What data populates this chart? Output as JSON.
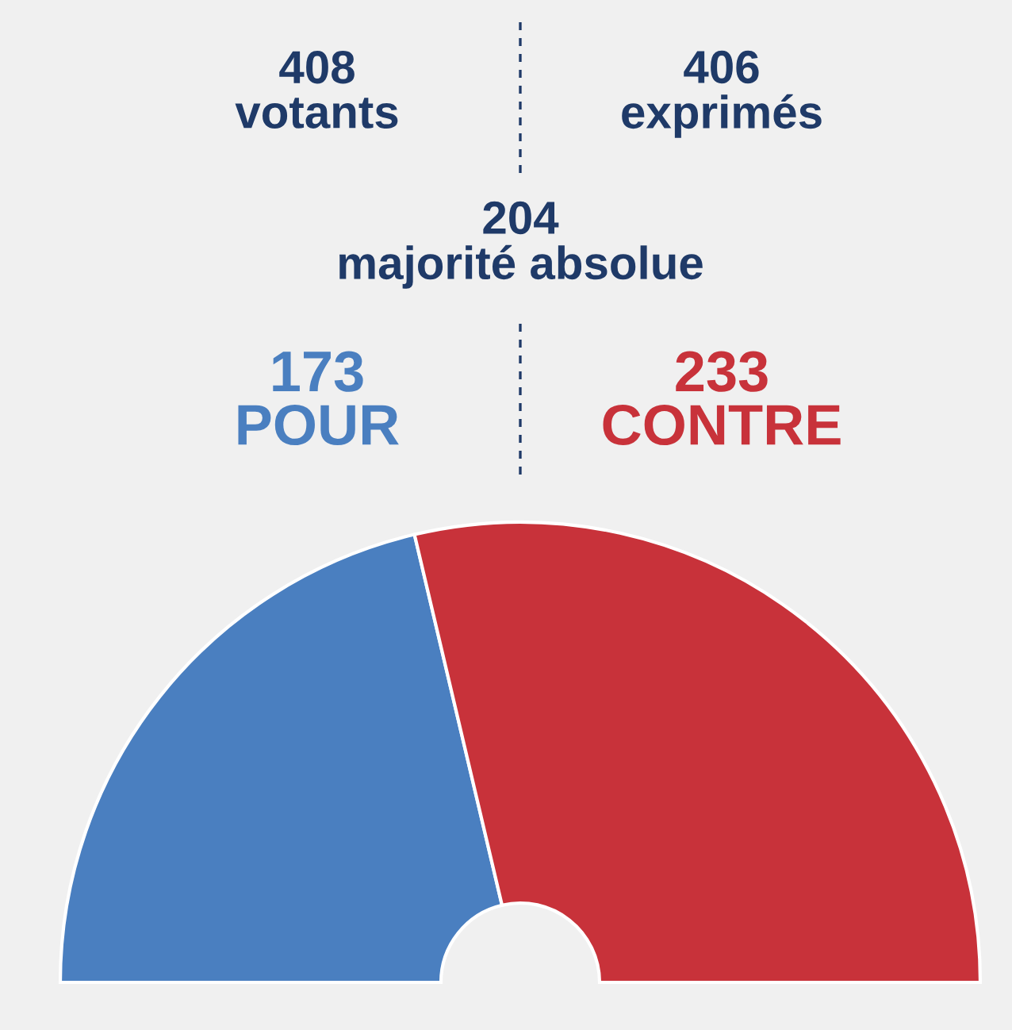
{
  "chart_data": {
    "type": "donut",
    "categories": [
      "POUR",
      "CONTRE"
    ],
    "values": [
      173,
      233
    ],
    "colors": [
      "#4a7fc0",
      "#c8323a"
    ],
    "data_labels": true,
    "annotations": [
      "408\nvotants",
      "406\nexprimés",
      "204\nmajorité absolue"
    ]
  }
}
